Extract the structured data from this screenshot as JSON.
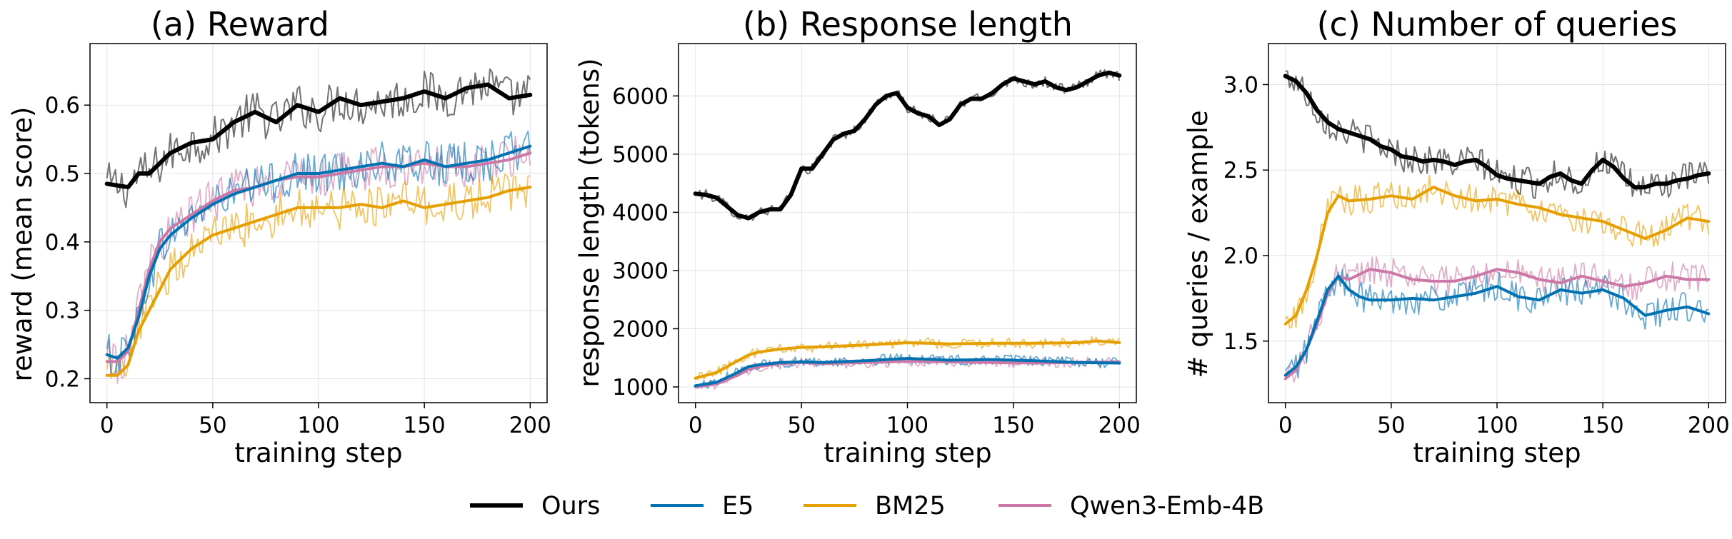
{
  "chart_data": [
    {
      "type": "line",
      "title": "(a) Reward",
      "xlabel": "training step",
      "ylabel": "reward (mean score)",
      "xlim": [
        -8,
        208
      ],
      "ylim": [
        0.165,
        0.69
      ],
      "xticks": [
        0,
        50,
        100,
        150,
        200
      ],
      "yticks": [
        0.2,
        0.3,
        0.4,
        0.5,
        0.6
      ],
      "ytick_labels": [
        "0.2",
        "0.3",
        "0.4",
        "0.5",
        "0.6"
      ],
      "grid": true,
      "noise": 0.032,
      "series": [
        {
          "name": "Ours",
          "x": [
            0,
            10,
            15,
            20,
            30,
            40,
            50,
            60,
            70,
            80,
            90,
            100,
            110,
            120,
            130,
            140,
            150,
            160,
            170,
            180,
            190,
            200
          ],
          "values": [
            0.485,
            0.48,
            0.5,
            0.5,
            0.53,
            0.545,
            0.55,
            0.575,
            0.59,
            0.575,
            0.6,
            0.59,
            0.61,
            0.6,
            0.605,
            0.61,
            0.62,
            0.61,
            0.625,
            0.63,
            0.61,
            0.615
          ]
        },
        {
          "name": "E5",
          "x": [
            0,
            5,
            10,
            15,
            20,
            25,
            30,
            40,
            50,
            60,
            70,
            80,
            90,
            100,
            110,
            120,
            130,
            140,
            150,
            160,
            170,
            180,
            190,
            200
          ],
          "values": [
            0.235,
            0.23,
            0.245,
            0.29,
            0.35,
            0.39,
            0.41,
            0.435,
            0.455,
            0.47,
            0.48,
            0.49,
            0.5,
            0.5,
            0.505,
            0.51,
            0.515,
            0.51,
            0.52,
            0.51,
            0.515,
            0.52,
            0.53,
            0.54
          ]
        },
        {
          "name": "BM25",
          "x": [
            0,
            5,
            10,
            15,
            20,
            25,
            30,
            40,
            50,
            60,
            70,
            80,
            90,
            100,
            110,
            120,
            130,
            140,
            150,
            160,
            170,
            180,
            190,
            200
          ],
          "values": [
            0.205,
            0.205,
            0.22,
            0.27,
            0.3,
            0.33,
            0.36,
            0.39,
            0.41,
            0.42,
            0.43,
            0.44,
            0.45,
            0.45,
            0.45,
            0.455,
            0.45,
            0.46,
            0.45,
            0.455,
            0.46,
            0.465,
            0.475,
            0.48
          ]
        },
        {
          "name": "Qwen3-Emb-4B",
          "x": [
            0,
            5,
            10,
            15,
            20,
            25,
            30,
            40,
            50,
            60,
            70,
            80,
            90,
            100,
            110,
            120,
            130,
            140,
            150,
            160,
            170,
            180,
            190,
            200
          ],
          "values": [
            0.225,
            0.225,
            0.24,
            0.3,
            0.36,
            0.4,
            0.42,
            0.44,
            0.46,
            0.475,
            0.48,
            0.49,
            0.495,
            0.495,
            0.5,
            0.505,
            0.51,
            0.51,
            0.515,
            0.51,
            0.51,
            0.515,
            0.52,
            0.53
          ]
        }
      ]
    },
    {
      "type": "line",
      "title": "(b) Response length",
      "xlabel": "training step",
      "ylabel": "response length (tokens)",
      "xlim": [
        -8,
        208
      ],
      "ylim": [
        730,
        6900
      ],
      "xticks": [
        0,
        50,
        100,
        150,
        200
      ],
      "yticks": [
        1000,
        2000,
        3000,
        4000,
        5000,
        6000
      ],
      "ytick_labels": [
        "1000",
        "2000",
        "3000",
        "4000",
        "5000",
        "6000"
      ],
      "grid": true,
      "noise": 90,
      "series": [
        {
          "name": "Ours",
          "x": [
            0,
            5,
            10,
            15,
            20,
            25,
            30,
            35,
            40,
            45,
            50,
            55,
            60,
            65,
            70,
            75,
            80,
            85,
            90,
            95,
            100,
            105,
            110,
            115,
            120,
            125,
            130,
            135,
            140,
            145,
            150,
            155,
            160,
            165,
            170,
            175,
            180,
            185,
            190,
            195,
            200
          ],
          "values": [
            4320,
            4300,
            4250,
            4100,
            3950,
            3900,
            4000,
            4050,
            4050,
            4300,
            4750,
            4750,
            5000,
            5250,
            5350,
            5400,
            5600,
            5850,
            6000,
            6050,
            5800,
            5700,
            5650,
            5500,
            5600,
            5850,
            5950,
            5950,
            6050,
            6200,
            6300,
            6250,
            6200,
            6250,
            6150,
            6100,
            6150,
            6250,
            6350,
            6400,
            6350
          ]
        },
        {
          "name": "E5",
          "x": [
            0,
            10,
            20,
            25,
            30,
            40,
            50,
            60,
            80,
            100,
            120,
            140,
            160,
            180,
            200
          ],
          "values": [
            1020,
            1080,
            1250,
            1350,
            1380,
            1420,
            1430,
            1420,
            1450,
            1490,
            1460,
            1470,
            1450,
            1420,
            1410
          ]
        },
        {
          "name": "BM25",
          "x": [
            0,
            10,
            20,
            25,
            30,
            40,
            50,
            60,
            80,
            100,
            120,
            140,
            160,
            180,
            190,
            200
          ],
          "values": [
            1150,
            1250,
            1450,
            1550,
            1600,
            1650,
            1680,
            1690,
            1720,
            1760,
            1740,
            1750,
            1750,
            1760,
            1790,
            1760
          ]
        },
        {
          "name": "Qwen3-Emb-4B",
          "x": [
            0,
            10,
            20,
            25,
            30,
            40,
            50,
            60,
            80,
            100,
            120,
            140,
            160,
            180,
            200
          ],
          "values": [
            1000,
            1050,
            1200,
            1300,
            1350,
            1400,
            1420,
            1400,
            1420,
            1440,
            1430,
            1420,
            1410,
            1420,
            1430
          ]
        }
      ]
    },
    {
      "type": "line",
      "title": "(c) Number of queries",
      "xlabel": "training step",
      "ylabel": "# queries / example",
      "xlim": [
        -8,
        208
      ],
      "ylim": [
        1.14,
        3.24
      ],
      "xticks": [
        0,
        50,
        100,
        150,
        200
      ],
      "yticks": [
        1.5,
        2.0,
        2.5,
        3.0
      ],
      "ytick_labels": [
        "1.5",
        "2.0",
        "2.5",
        "3.0"
      ],
      "grid": true,
      "noise": 0.09,
      "series": [
        {
          "name": "Ours",
          "x": [
            0,
            5,
            10,
            15,
            20,
            25,
            30,
            35,
            40,
            45,
            50,
            55,
            60,
            65,
            70,
            75,
            80,
            85,
            90,
            95,
            100,
            105,
            110,
            115,
            120,
            125,
            130,
            135,
            140,
            145,
            150,
            155,
            160,
            165,
            170,
            175,
            180,
            185,
            190,
            195,
            200
          ],
          "values": [
            3.05,
            3.02,
            2.95,
            2.85,
            2.78,
            2.74,
            2.72,
            2.7,
            2.68,
            2.64,
            2.62,
            2.58,
            2.57,
            2.55,
            2.56,
            2.55,
            2.53,
            2.55,
            2.56,
            2.52,
            2.47,
            2.45,
            2.44,
            2.43,
            2.42,
            2.46,
            2.48,
            2.44,
            2.42,
            2.5,
            2.56,
            2.52,
            2.45,
            2.4,
            2.4,
            2.42,
            2.42,
            2.44,
            2.45,
            2.47,
            2.48
          ]
        },
        {
          "name": "E5",
          "x": [
            0,
            5,
            10,
            15,
            20,
            25,
            30,
            35,
            40,
            50,
            60,
            70,
            80,
            90,
            100,
            110,
            120,
            130,
            140,
            150,
            160,
            170,
            180,
            190,
            200
          ],
          "values": [
            1.3,
            1.35,
            1.45,
            1.62,
            1.8,
            1.88,
            1.8,
            1.76,
            1.74,
            1.74,
            1.75,
            1.74,
            1.76,
            1.78,
            1.82,
            1.76,
            1.74,
            1.8,
            1.78,
            1.8,
            1.75,
            1.65,
            1.68,
            1.7,
            1.66
          ]
        },
        {
          "name": "BM25",
          "x": [
            0,
            5,
            10,
            15,
            20,
            25,
            30,
            40,
            50,
            60,
            70,
            80,
            90,
            100,
            110,
            120,
            130,
            140,
            150,
            160,
            170,
            180,
            190,
            200
          ],
          "values": [
            1.6,
            1.65,
            1.8,
            2.0,
            2.25,
            2.35,
            2.32,
            2.33,
            2.35,
            2.33,
            2.4,
            2.35,
            2.32,
            2.33,
            2.3,
            2.28,
            2.24,
            2.22,
            2.2,
            2.15,
            2.1,
            2.15,
            2.22,
            2.2
          ]
        },
        {
          "name": "Qwen3-Emb-4B",
          "x": [
            0,
            5,
            10,
            15,
            20,
            25,
            30,
            40,
            50,
            60,
            70,
            80,
            90,
            100,
            110,
            120,
            130,
            140,
            150,
            160,
            170,
            180,
            190,
            200
          ],
          "values": [
            1.28,
            1.33,
            1.45,
            1.6,
            1.78,
            1.88,
            1.86,
            1.92,
            1.9,
            1.86,
            1.85,
            1.85,
            1.88,
            1.92,
            1.9,
            1.86,
            1.84,
            1.88,
            1.85,
            1.82,
            1.84,
            1.88,
            1.86,
            1.86
          ]
        }
      ]
    }
  ],
  "legend": {
    "placement": "bottom-center",
    "entries": [
      {
        "name": "Ours",
        "color": "#000000"
      },
      {
        "name": "E5",
        "color": "#0072b2"
      },
      {
        "name": "BM25",
        "color": "#e69f00"
      },
      {
        "name": "Qwen3-Emb-4B",
        "color": "#cc79a7"
      }
    ]
  },
  "colors": {
    "Ours": "#000000",
    "E5": "#0072b2",
    "BM25": "#e69f00",
    "Qwen3-Emb-4B": "#cc79a7"
  }
}
